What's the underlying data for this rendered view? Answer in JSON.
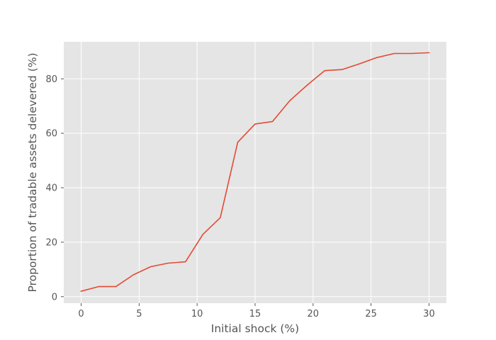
{
  "chart_data": {
    "type": "line",
    "title": "",
    "xlabel": "Initial shock (%)",
    "ylabel": "Proportion of tradable assets delevered (%)",
    "xlim": [
      -1.5,
      31.5
    ],
    "ylim": [
      -2.4,
      93.6
    ],
    "xticks": [
      0,
      5,
      10,
      15,
      20,
      25,
      30
    ],
    "xtick_labels": [
      "0",
      "5",
      "10",
      "15",
      "20",
      "25",
      "30"
    ],
    "yticks": [
      0,
      20,
      40,
      60,
      80
    ],
    "ytick_labels": [
      "0",
      "20",
      "40",
      "60",
      "80"
    ],
    "grid": true,
    "style": "ggplot",
    "colors": {
      "plot_background": "#E5E5E5",
      "grid": "#FFFFFF",
      "line": "#E24A33",
      "text": "#555555"
    },
    "series": [
      {
        "x": [
          0,
          1.5,
          3,
          4.5,
          6,
          7.5,
          9,
          10.5,
          12,
          13.5,
          15,
          16.5,
          18,
          19.5,
          21,
          22.5,
          24,
          25.5,
          27,
          28.5,
          30
        ],
        "y": [
          2.0,
          3.7,
          3.7,
          8.0,
          11.0,
          12.3,
          12.8,
          22.9,
          29.0,
          56.7,
          63.4,
          64.3,
          72.0,
          77.7,
          83.0,
          83.4,
          85.5,
          87.8,
          89.3,
          89.3,
          89.6
        ]
      }
    ]
  }
}
